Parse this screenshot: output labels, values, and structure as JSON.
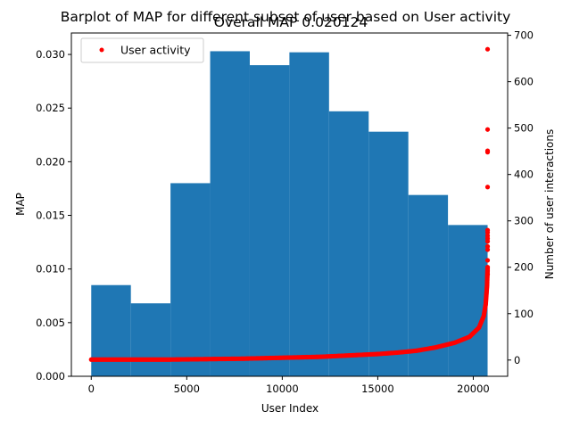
{
  "chart_data": {
    "type": "bar",
    "suptitle": "Barplot of MAP for different subset of user based on User activity",
    "title": "Overall MAP 0.020124",
    "xlabel": "User Index",
    "ylabel": "MAP",
    "y2label": "Number of user interactions",
    "xlim": [
      -1040,
      21800
    ],
    "ylim": [
      0,
      0.032
    ],
    "y2lim": [
      -35,
      705
    ],
    "xticks": [
      0,
      5000,
      10000,
      15000,
      20000
    ],
    "yticks": [
      0.0,
      0.005,
      0.01,
      0.015,
      0.02,
      0.025,
      0.03
    ],
    "y2ticks": [
      0,
      100,
      200,
      300,
      400,
      500,
      600,
      700
    ],
    "xtick_labels": [
      "0",
      "5000",
      "10000",
      "15000",
      "20000"
    ],
    "ytick_labels": [
      "0.000",
      "0.005",
      "0.010",
      "0.015",
      "0.020",
      "0.025",
      "0.030"
    ],
    "y2tick_labels": [
      "0",
      "100",
      "200",
      "300",
      "400",
      "500",
      "600",
      "700"
    ],
    "bar_color": "#1f77b4",
    "bars": [
      {
        "x0": 0,
        "x1": 2075,
        "value": 0.0085
      },
      {
        "x0": 2075,
        "x1": 4150,
        "value": 0.0068
      },
      {
        "x0": 4150,
        "x1": 6225,
        "value": 0.018
      },
      {
        "x0": 6225,
        "x1": 8300,
        "value": 0.0303
      },
      {
        "x0": 8300,
        "x1": 10375,
        "value": 0.029
      },
      {
        "x0": 10375,
        "x1": 12450,
        "value": 0.0302
      },
      {
        "x0": 12450,
        "x1": 14525,
        "value": 0.0247
      },
      {
        "x0": 14525,
        "x1": 16600,
        "value": 0.0228
      },
      {
        "x0": 16600,
        "x1": 18675,
        "value": 0.0169
      },
      {
        "x0": 18675,
        "x1": 20750,
        "value": 0.0141
      }
    ],
    "series": [
      {
        "name": "User activity",
        "axis": "right",
        "color": "#ff0000",
        "curve": [
          [
            0,
            1
          ],
          [
            2000,
            1
          ],
          [
            4000,
            1
          ],
          [
            6000,
            2
          ],
          [
            8000,
            3
          ],
          [
            10000,
            5
          ],
          [
            12000,
            7
          ],
          [
            14000,
            11
          ],
          [
            15000,
            13
          ],
          [
            16000,
            16
          ],
          [
            17000,
            20
          ],
          [
            18000,
            27
          ],
          [
            19000,
            37
          ],
          [
            19800,
            50
          ],
          [
            20300,
            70
          ],
          [
            20550,
            95
          ],
          [
            20650,
            120
          ],
          [
            20720,
            160
          ],
          [
            20750,
            200
          ]
        ],
        "outliers": [
          [
            20750,
            670
          ],
          [
            20750,
            497
          ],
          [
            20750,
            451
          ],
          [
            20750,
            448
          ],
          [
            20750,
            373
          ],
          [
            20750,
            280
          ],
          [
            20750,
            275
          ],
          [
            20750,
            268
          ],
          [
            20750,
            262
          ],
          [
            20750,
            256
          ],
          [
            20750,
            245
          ],
          [
            20750,
            238
          ],
          [
            20750,
            215
          ],
          [
            20750,
            200
          ],
          [
            20750,
            192
          ],
          [
            20750,
            185
          ]
        ]
      }
    ],
    "legend": {
      "position": "top-left",
      "entries": [
        "User activity"
      ]
    },
    "grid": false
  }
}
